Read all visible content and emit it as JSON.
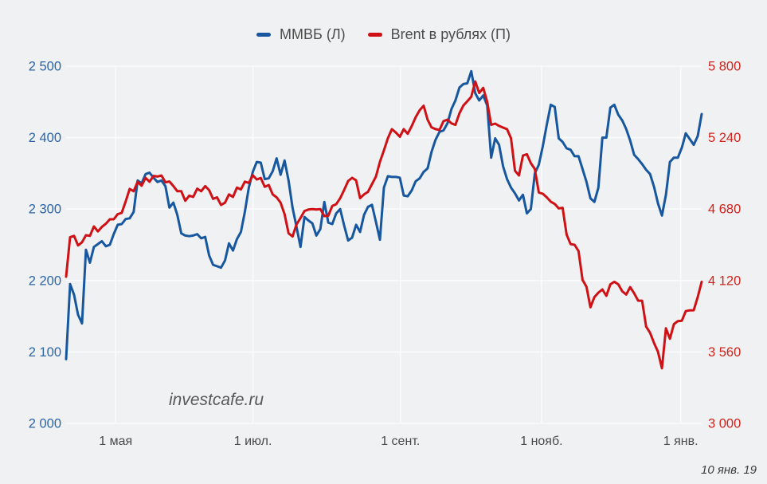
{
  "watermark": "investcafe.ru",
  "date_note": "10 янв. 19",
  "colors": {
    "background": "#f0f1f2",
    "gridline": "#fbfbfb",
    "mmvb_blue": "#17579f",
    "brent_red": "#cf1115",
    "left_axis_label": "#2c64a8",
    "right_axis_label": "#d1241e",
    "x_axis_label": "#4a4a4a",
    "legend_text": "#4c4c4c"
  },
  "chart_data": {
    "type": "line",
    "title": "",
    "legend_position": "top-center",
    "grid": true,
    "left_axis": {
      "min": 2000,
      "max": 2500,
      "ticks": [
        {
          "value": 2000,
          "label": "2 000"
        },
        {
          "value": 2100,
          "label": "2 100"
        },
        {
          "value": 2200,
          "label": "2 200"
        },
        {
          "value": 2300,
          "label": "2 300"
        },
        {
          "value": 2400,
          "label": "2 400"
        },
        {
          "value": 2500,
          "label": "2 500"
        }
      ]
    },
    "right_axis": {
      "min": 3000,
      "max": 5800,
      "ticks": [
        {
          "value": 3000,
          "label": "3 000"
        },
        {
          "value": 3560,
          "label": "3 560"
        },
        {
          "value": 4120,
          "label": "4 120"
        },
        {
          "value": 4680,
          "label": "4 680"
        },
        {
          "value": 5240,
          "label": "5 240"
        },
        {
          "value": 5800,
          "label": "5 800"
        }
      ]
    },
    "x_axis": {
      "ticks": [
        {
          "label": "1 мая",
          "t": 0.078
        },
        {
          "label": "1 июл.",
          "t": 0.294
        },
        {
          "label": "1 сент.",
          "t": 0.526
        },
        {
          "label": "1 нояб.",
          "t": 0.748
        },
        {
          "label": "1 янв.",
          "t": 0.967
        }
      ]
    },
    "series": [
      {
        "name": "ММВБ (Л)",
        "axis": "left",
        "color": "#17579f",
        "values": [
          2090,
          2195,
          2180,
          2152,
          2140,
          2243,
          2225,
          2247,
          2251,
          2255,
          2248,
          2250,
          2265,
          2278,
          2279,
          2286,
          2287,
          2296,
          2340,
          2336,
          2349,
          2351,
          2344,
          2338,
          2340,
          2332,
          2302,
          2309,
          2292,
          2266,
          2263,
          2262,
          2263,
          2265,
          2259,
          2261,
          2235,
          2222,
          2220,
          2218,
          2228,
          2252,
          2242,
          2258,
          2268,
          2296,
          2330,
          2352,
          2366,
          2365,
          2342,
          2343,
          2353,
          2371,
          2348,
          2368,
          2340,
          2302,
          2275,
          2247,
          2289,
          2284,
          2280,
          2263,
          2272,
          2310,
          2281,
          2279,
          2294,
          2300,
          2277,
          2256,
          2260,
          2278,
          2268,
          2292,
          2303,
          2306,
          2282,
          2257,
          2330,
          2346,
          2345,
          2345,
          2344,
          2319,
          2318,
          2326,
          2339,
          2343,
          2352,
          2357,
          2380,
          2397,
          2408,
          2410,
          2420,
          2440,
          2452,
          2470,
          2475,
          2476,
          2493,
          2462,
          2452,
          2459,
          2445,
          2372,
          2399,
          2390,
          2360,
          2342,
          2330,
          2322,
          2312,
          2320,
          2294,
          2300,
          2350,
          2362,
          2388,
          2418,
          2446,
          2443,
          2399,
          2394,
          2385,
          2383,
          2374,
          2374,
          2356,
          2338,
          2315,
          2310,
          2330,
          2400,
          2400,
          2442,
          2446,
          2432,
          2424,
          2412,
          2396,
          2376,
          2370,
          2363,
          2355,
          2349,
          2331,
          2308,
          2291,
          2320,
          2366,
          2372,
          2372,
          2386,
          2406,
          2398,
          2390,
          2402,
          2433
        ]
      },
      {
        "name": "Brent в рублях (П)",
        "axis": "right",
        "color": "#cf1115",
        "values": [
          4150,
          4460,
          4470,
          4395,
          4420,
          4475,
          4470,
          4544,
          4505,
          4540,
          4565,
          4600,
          4600,
          4640,
          4650,
          4740,
          4838,
          4820,
          4894,
          4863,
          4925,
          4894,
          4940,
          4935,
          4943,
          4890,
          4896,
          4860,
          4820,
          4820,
          4745,
          4785,
          4775,
          4840,
          4820,
          4860,
          4828,
          4760,
          4772,
          4712,
          4730,
          4795,
          4775,
          4848,
          4834,
          4895,
          4885,
          4945,
          4912,
          4924,
          4855,
          4868,
          4795,
          4772,
          4730,
          4640,
          4490,
          4465,
          4560,
          4610,
          4665,
          4676,
          4680,
          4676,
          4680,
          4625,
          4628,
          4705,
          4718,
          4765,
          4830,
          4900,
          4925,
          4905,
          4765,
          4795,
          4815,
          4875,
          4935,
          5050,
          5140,
          5235,
          5306,
          5280,
          5247,
          5306,
          5270,
          5330,
          5400,
          5455,
          5490,
          5380,
          5320,
          5307,
          5300,
          5369,
          5381,
          5352,
          5340,
          5430,
          5492,
          5525,
          5560,
          5680,
          5590,
          5630,
          5520,
          5340,
          5350,
          5332,
          5319,
          5306,
          5235,
          4980,
          4944,
          5100,
          5110,
          5040,
          4994,
          4810,
          4800,
          4772,
          4738,
          4720,
          4685,
          4690,
          4480,
          4405,
          4400,
          4350,
          4125,
          4070,
          3910,
          3990,
          4025,
          4050,
          4000,
          4090,
          4110,
          4090,
          4035,
          4010,
          4068,
          4020,
          3962,
          3962,
          3760,
          3710,
          3630,
          3562,
          3432,
          3745,
          3664,
          3778,
          3802,
          3805,
          3880,
          3886,
          3887,
          3990,
          4110
        ]
      }
    ]
  }
}
